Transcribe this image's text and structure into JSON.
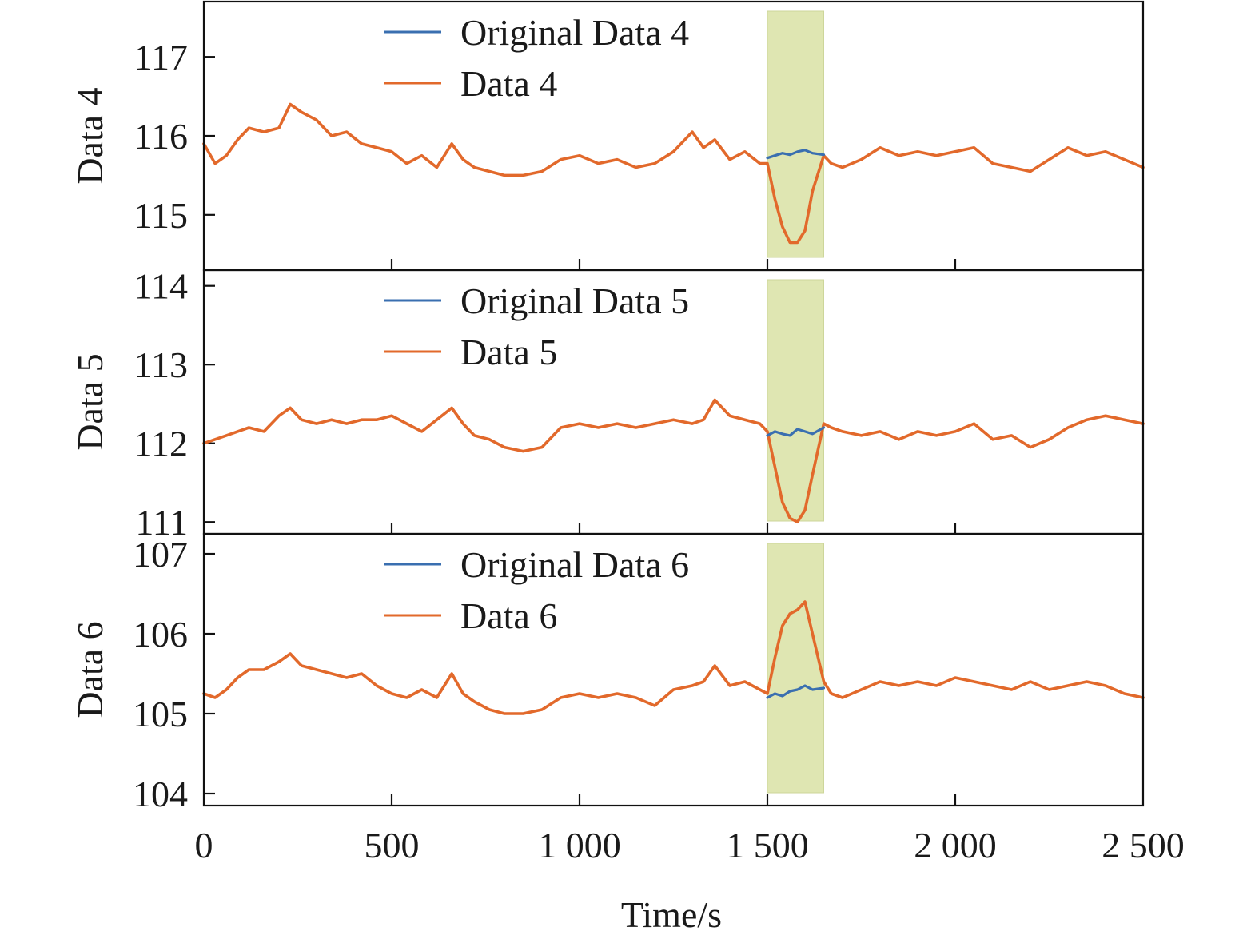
{
  "chart_data": {
    "type": "line",
    "xlabel": "Time/s",
    "xlim": [
      0,
      2500
    ],
    "xticks": [
      0,
      500,
      1000,
      1500,
      2000,
      2500
    ],
    "xtick_labels": [
      "0",
      "500",
      "1 000",
      "1 500",
      "2 000",
      "2 500"
    ],
    "highlight": {
      "x_start": 1500,
      "x_end": 1650,
      "color": "#dfe6b2"
    },
    "series_colors": {
      "original": "#3a6fb0",
      "data": "#e2692b"
    },
    "panels": [
      {
        "ylabel": "Data 4",
        "ylim": [
          114.3,
          117.7
        ],
        "yticks": [
          115,
          116,
          117
        ],
        "legend": [
          "Original Data 4",
          "Data 4"
        ],
        "series": [
          {
            "name": "Original Data 4",
            "x": [
              1500,
              1520,
              1540,
              1560,
              1580,
              1600,
              1620,
              1650
            ],
            "values": [
              115.72,
              115.75,
              115.78,
              115.76,
              115.8,
              115.82,
              115.78,
              115.76
            ]
          },
          {
            "name": "Data 4",
            "x": [
              0,
              30,
              60,
              90,
              120,
              160,
              200,
              230,
              260,
              300,
              340,
              380,
              420,
              460,
              500,
              540,
              580,
              620,
              660,
              690,
              720,
              760,
              800,
              850,
              900,
              950,
              1000,
              1050,
              1100,
              1150,
              1200,
              1250,
              1300,
              1330,
              1360,
              1400,
              1440,
              1480,
              1500,
              1520,
              1540,
              1560,
              1580,
              1600,
              1620,
              1650,
              1670,
              1700,
              1750,
              1800,
              1850,
              1900,
              1950,
              2000,
              2050,
              2100,
              2150,
              2200,
              2250,
              2300,
              2350,
              2400,
              2450,
              2500
            ],
            "values": [
              115.9,
              115.65,
              115.75,
              115.95,
              116.1,
              116.05,
              116.1,
              116.4,
              116.3,
              116.2,
              116.0,
              116.05,
              115.9,
              115.85,
              115.8,
              115.65,
              115.75,
              115.6,
              115.9,
              115.7,
              115.6,
              115.55,
              115.5,
              115.5,
              115.55,
              115.7,
              115.75,
              115.65,
              115.7,
              115.6,
              115.65,
              115.8,
              116.05,
              115.85,
              115.95,
              115.7,
              115.8,
              115.65,
              115.65,
              115.2,
              114.85,
              114.65,
              114.65,
              114.8,
              115.3,
              115.75,
              115.65,
              115.6,
              115.7,
              115.85,
              115.75,
              115.8,
              115.75,
              115.8,
              115.85,
              115.65,
              115.6,
              115.55,
              115.7,
              115.85,
              115.75,
              115.8,
              115.7,
              115.6
            ]
          }
        ]
      },
      {
        "ylabel": "Data 5",
        "ylim": [
          110.85,
          114.2
        ],
        "yticks": [
          111,
          112,
          113,
          114
        ],
        "legend": [
          "Original Data 5",
          "Data 5"
        ],
        "series": [
          {
            "name": "Original Data 5",
            "x": [
              1500,
              1520,
              1540,
              1560,
              1580,
              1600,
              1620,
              1650
            ],
            "values": [
              112.1,
              112.15,
              112.12,
              112.1,
              112.18,
              112.15,
              112.12,
              112.2
            ]
          },
          {
            "name": "Data 5",
            "x": [
              0,
              30,
              60,
              90,
              120,
              160,
              200,
              230,
              260,
              300,
              340,
              380,
              420,
              460,
              500,
              540,
              580,
              620,
              660,
              690,
              720,
              760,
              800,
              850,
              900,
              950,
              1000,
              1050,
              1100,
              1150,
              1200,
              1250,
              1300,
              1330,
              1360,
              1400,
              1440,
              1480,
              1500,
              1520,
              1540,
              1560,
              1580,
              1600,
              1620,
              1650,
              1670,
              1700,
              1750,
              1800,
              1850,
              1900,
              1950,
              2000,
              2050,
              2100,
              2150,
              2200,
              2250,
              2300,
              2350,
              2400,
              2450,
              2500
            ],
            "values": [
              112.0,
              112.05,
              112.1,
              112.15,
              112.2,
              112.15,
              112.35,
              112.45,
              112.3,
              112.25,
              112.3,
              112.25,
              112.3,
              112.3,
              112.35,
              112.25,
              112.15,
              112.3,
              112.45,
              112.25,
              112.1,
              112.05,
              111.95,
              111.9,
              111.95,
              112.2,
              112.25,
              112.2,
              112.25,
              112.2,
              112.25,
              112.3,
              112.25,
              112.3,
              112.55,
              112.35,
              112.3,
              112.25,
              112.15,
              111.7,
              111.25,
              111.05,
              111.0,
              111.15,
              111.6,
              112.25,
              112.2,
              112.15,
              112.1,
              112.15,
              112.05,
              112.15,
              112.1,
              112.15,
              112.25,
              112.05,
              112.1,
              111.95,
              112.05,
              112.2,
              112.3,
              112.35,
              112.3,
              112.25
            ]
          }
        ]
      },
      {
        "ylabel": "Data 6",
        "ylim": [
          103.85,
          107.25
        ],
        "yticks": [
          104,
          105,
          106,
          107
        ],
        "legend": [
          "Original Data 6",
          "Data 6"
        ],
        "series": [
          {
            "name": "Original Data 6",
            "x": [
              1500,
              1520,
              1540,
              1560,
              1580,
              1600,
              1620,
              1650
            ],
            "values": [
              105.2,
              105.25,
              105.22,
              105.28,
              105.3,
              105.35,
              105.3,
              105.32
            ]
          },
          {
            "name": "Data 6",
            "x": [
              0,
              30,
              60,
              90,
              120,
              160,
              200,
              230,
              260,
              300,
              340,
              380,
              420,
              460,
              500,
              540,
              580,
              620,
              660,
              690,
              720,
              760,
              800,
              850,
              900,
              950,
              1000,
              1050,
              1100,
              1150,
              1200,
              1250,
              1300,
              1330,
              1360,
              1400,
              1440,
              1480,
              1500,
              1520,
              1540,
              1560,
              1580,
              1600,
              1620,
              1650,
              1670,
              1700,
              1750,
              1800,
              1850,
              1900,
              1950,
              2000,
              2050,
              2100,
              2150,
              2200,
              2250,
              2300,
              2350,
              2400,
              2450,
              2500
            ],
            "values": [
              105.25,
              105.2,
              105.3,
              105.45,
              105.55,
              105.55,
              105.65,
              105.75,
              105.6,
              105.55,
              105.5,
              105.45,
              105.5,
              105.35,
              105.25,
              105.2,
              105.3,
              105.2,
              105.5,
              105.25,
              105.15,
              105.05,
              105.0,
              105.0,
              105.05,
              105.2,
              105.25,
              105.2,
              105.25,
              105.2,
              105.1,
              105.3,
              105.35,
              105.4,
              105.6,
              105.35,
              105.4,
              105.3,
              105.25,
              105.7,
              106.1,
              106.25,
              106.3,
              106.4,
              106.0,
              105.4,
              105.25,
              105.2,
              105.3,
              105.4,
              105.35,
              105.4,
              105.35,
              105.45,
              105.4,
              105.35,
              105.3,
              105.4,
              105.3,
              105.35,
              105.4,
              105.35,
              105.25,
              105.2
            ]
          }
        ]
      }
    ]
  }
}
